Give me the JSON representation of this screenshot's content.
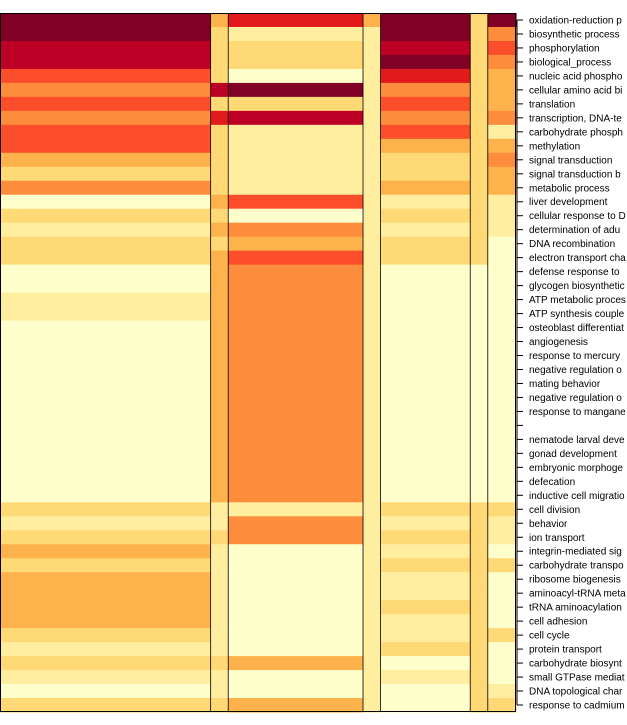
{
  "chart_data": {
    "type": "heatmap",
    "title": "",
    "xlabel": "",
    "ylabel": "",
    "legend": "none",
    "grid": false,
    "palette": [
      "#ffffcc",
      "#ffeda0",
      "#fed976",
      "#feb24c",
      "#fd8d3c",
      "#fc4e2a",
      "#e31a1c",
      "#bd0026",
      "#800026"
    ],
    "column_groups": [
      {
        "width": 0.336
      },
      {
        "width": 0.028
      },
      {
        "width": 0.215
      },
      {
        "width": 0.028
      },
      {
        "width": 0.143
      },
      {
        "width": 0.028
      },
      {
        "width": 0.045
      }
    ],
    "rows": [
      {
        "label": "oxidation-reduction p",
        "levels": [
          8,
          3,
          6,
          3,
          8,
          2,
          8
        ]
      },
      {
        "label": "biosynthetic process",
        "levels": [
          8,
          2,
          1,
          1,
          8,
          2,
          4
        ]
      },
      {
        "label": "phosphorylation",
        "levels": [
          7,
          2,
          2,
          1,
          7,
          2,
          5
        ]
      },
      {
        "label": "biological_process",
        "levels": [
          7,
          2,
          2,
          1,
          8,
          2,
          4
        ]
      },
      {
        "label": "nucleic acid phospho",
        "levels": [
          5,
          2,
          0,
          1,
          6,
          2,
          3
        ]
      },
      {
        "label": "cellular amino acid bi",
        "levels": [
          4,
          7,
          8,
          1,
          4,
          2,
          3
        ]
      },
      {
        "label": "translation",
        "levels": [
          5,
          2,
          2,
          1,
          5,
          2,
          3
        ]
      },
      {
        "label": "transcription, DNA-te",
        "levels": [
          4,
          6,
          7,
          1,
          4,
          2,
          4
        ]
      },
      {
        "label": "carbohydrate phosph",
        "levels": [
          5,
          2,
          1,
          1,
          5,
          2,
          1
        ]
      },
      {
        "label": "methylation",
        "levels": [
          5,
          2,
          1,
          1,
          3,
          2,
          3
        ]
      },
      {
        "label": "signal transduction",
        "levels": [
          3,
          2,
          1,
          1,
          2,
          2,
          4
        ]
      },
      {
        "label": "signal transduction b",
        "levels": [
          2,
          2,
          1,
          1,
          2,
          2,
          3
        ]
      },
      {
        "label": "metabolic process",
        "levels": [
          4,
          2,
          1,
          1,
          3,
          2,
          3
        ]
      },
      {
        "label": "liver development",
        "levels": [
          0,
          3,
          5,
          1,
          1,
          2,
          1
        ]
      },
      {
        "label": "cellular response to D",
        "levels": [
          2,
          2,
          0,
          1,
          2,
          2,
          1
        ]
      },
      {
        "label": "determination of adu",
        "levels": [
          1,
          3,
          4,
          1,
          1,
          2,
          1
        ]
      },
      {
        "label": "DNA recombination",
        "levels": [
          2,
          2,
          3,
          1,
          2,
          2,
          0
        ]
      },
      {
        "label": "electron transport cha",
        "levels": [
          2,
          3,
          5,
          1,
          2,
          2,
          0
        ]
      },
      {
        "label": "defense response to",
        "levels": [
          0,
          3,
          4,
          1,
          0,
          0,
          0
        ]
      },
      {
        "label": "glycogen biosynthetic",
        "levels": [
          0,
          3,
          4,
          1,
          0,
          0,
          0
        ]
      },
      {
        "label": "ATP metabolic proces",
        "levels": [
          1,
          3,
          4,
          1,
          0,
          0,
          0
        ]
      },
      {
        "label": "ATP synthesis couple",
        "levels": [
          1,
          3,
          4,
          1,
          0,
          0,
          0
        ]
      },
      {
        "label": "osteoblast differentiat",
        "levels": [
          0,
          3,
          4,
          1,
          0,
          0,
          0
        ]
      },
      {
        "label": "angiogenesis",
        "levels": [
          0,
          3,
          4,
          1,
          0,
          0,
          0
        ]
      },
      {
        "label": "response to mercury",
        "levels": [
          0,
          3,
          4,
          1,
          0,
          0,
          0
        ]
      },
      {
        "label": "negative regulation o",
        "levels": [
          0,
          3,
          4,
          1,
          0,
          0,
          0
        ]
      },
      {
        "label": "mating behavior",
        "levels": [
          0,
          3,
          4,
          1,
          0,
          0,
          0
        ]
      },
      {
        "label": "negative regulation o",
        "levels": [
          0,
          3,
          4,
          1,
          0,
          0,
          0
        ]
      },
      {
        "label": "response to mangane",
        "levels": [
          0,
          3,
          4,
          1,
          0,
          0,
          0
        ]
      },
      {
        "label": "",
        "levels": [
          0,
          3,
          4,
          1,
          0,
          0,
          0
        ]
      },
      {
        "label": "nematode larval deve",
        "levels": [
          0,
          3,
          4,
          1,
          0,
          0,
          0
        ]
      },
      {
        "label": "gonad development",
        "levels": [
          0,
          3,
          4,
          1,
          0,
          0,
          0
        ]
      },
      {
        "label": "embryonic morphoge",
        "levels": [
          0,
          3,
          4,
          1,
          0,
          0,
          0
        ]
      },
      {
        "label": "defecation",
        "levels": [
          0,
          3,
          4,
          1,
          0,
          0,
          0
        ]
      },
      {
        "label": "inductive cell migratio",
        "levels": [
          0,
          3,
          4,
          1,
          0,
          0,
          0
        ]
      },
      {
        "label": "cell division",
        "levels": [
          2,
          1,
          1,
          1,
          2,
          2,
          2
        ]
      },
      {
        "label": "behavior",
        "levels": [
          1,
          1,
          4,
          1,
          1,
          2,
          1
        ]
      },
      {
        "label": "ion transport",
        "levels": [
          2,
          2,
          4,
          1,
          2,
          2,
          1
        ]
      },
      {
        "label": "integrin-mediated sig",
        "levels": [
          3,
          1,
          0,
          1,
          1,
          2,
          0
        ]
      },
      {
        "label": "carbohydrate transpo",
        "levels": [
          2,
          1,
          0,
          1,
          2,
          2,
          2
        ]
      },
      {
        "label": "ribosome biogenesis",
        "levels": [
          3,
          1,
          0,
          1,
          1,
          2,
          0
        ]
      },
      {
        "label": "aminoacyl-tRNA meta",
        "levels": [
          3,
          1,
          0,
          1,
          1,
          2,
          0
        ]
      },
      {
        "label": "tRNA aminoacylation",
        "levels": [
          3,
          1,
          0,
          1,
          2,
          2,
          0
        ]
      },
      {
        "label": "cell adhesion",
        "levels": [
          3,
          1,
          0,
          1,
          1,
          2,
          0
        ]
      },
      {
        "label": "cell cycle",
        "levels": [
          2,
          1,
          0,
          1,
          1,
          2,
          2
        ]
      },
      {
        "label": "protein transport",
        "levels": [
          1,
          1,
          0,
          1,
          2,
          2,
          0
        ]
      },
      {
        "label": "carbohydrate biosynt",
        "levels": [
          2,
          2,
          3,
          1,
          0,
          2,
          0
        ]
      },
      {
        "label": "small GTPase mediat",
        "levels": [
          1,
          1,
          0,
          1,
          1,
          2,
          0
        ]
      },
      {
        "label": "DNA topological char",
        "levels": [
          0,
          1,
          0,
          1,
          0,
          2,
          1
        ]
      },
      {
        "label": "response to cadmium",
        "levels": [
          2,
          2,
          3,
          1,
          0,
          2,
          2
        ]
      }
    ]
  }
}
